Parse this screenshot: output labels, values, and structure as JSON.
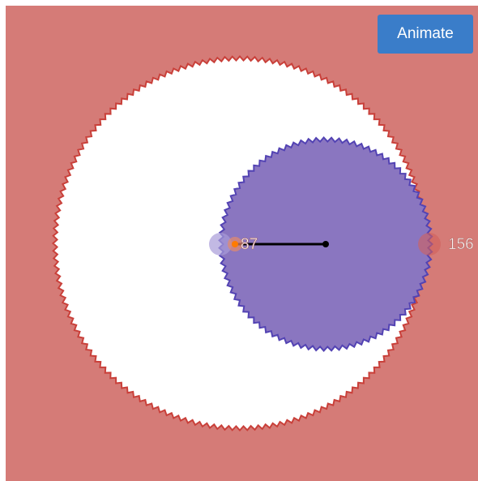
{
  "button": {
    "label": "Animate"
  },
  "gears": [
    {
      "teeth": 156
    },
    {
      "teeth": 87
    }
  ]
}
